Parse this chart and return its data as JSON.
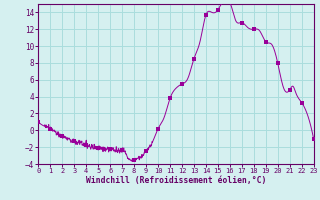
{
  "title": "",
  "xlabel": "Windchill (Refroidissement éolien,°C)",
  "ylabel": "",
  "xlim": [
    0,
    23
  ],
  "ylim": [
    -4,
    15
  ],
  "yticks": [
    -4,
    -2,
    0,
    2,
    4,
    6,
    8,
    10,
    12,
    14
  ],
  "xticks": [
    0,
    1,
    2,
    3,
    4,
    5,
    6,
    7,
    8,
    9,
    10,
    11,
    12,
    13,
    14,
    15,
    16,
    17,
    18,
    19,
    20,
    21,
    22,
    23
  ],
  "line_color": "#990099",
  "marker_color": "#990099",
  "bg_color": "#d5f0f0",
  "grid_color": "#aadddd",
  "hours_key": [
    0,
    0.5,
    1,
    1.5,
    2,
    2.5,
    3,
    3.5,
    4,
    4.5,
    5,
    5.5,
    6,
    6.5,
    7,
    7.2,
    7.5,
    8.0,
    8.3,
    8.7,
    9.0,
    9.5,
    10.0,
    10.5,
    11.0,
    11.5,
    12.0,
    12.5,
    13.0,
    13.5,
    14.0,
    14.5,
    15.0,
    15.3,
    15.5,
    16.0,
    16.5,
    17.0,
    17.5,
    18.0,
    18.5,
    19.0,
    19.5,
    20.0,
    20.5,
    21.0,
    21.3,
    21.5,
    22.0,
    22.5,
    23.0
  ],
  "vals_key": [
    1.0,
    0.5,
    0.2,
    -0.3,
    -0.7,
    -1.0,
    -1.3,
    -1.5,
    -1.7,
    -2.0,
    -2.1,
    -2.3,
    -2.2,
    -2.4,
    -2.3,
    -2.5,
    -3.3,
    -3.5,
    -3.3,
    -3.0,
    -2.5,
    -1.5,
    0.2,
    1.5,
    3.8,
    5.0,
    5.5,
    6.2,
    8.5,
    10.5,
    13.7,
    14.0,
    14.3,
    15.0,
    15.2,
    15.2,
    13.0,
    12.8,
    12.2,
    12.0,
    11.8,
    10.5,
    10.2,
    8.0,
    5.0,
    4.8,
    5.2,
    4.5,
    3.3,
    1.8,
    -1.0
  ],
  "marker_hours": [
    0,
    1,
    2,
    3,
    4,
    5,
    6,
    7,
    8,
    9,
    10,
    11,
    12,
    13,
    14,
    15,
    16,
    17,
    18,
    19,
    20,
    21,
    22,
    23
  ],
  "noise_seed": 42,
  "noise_std": 0.18
}
